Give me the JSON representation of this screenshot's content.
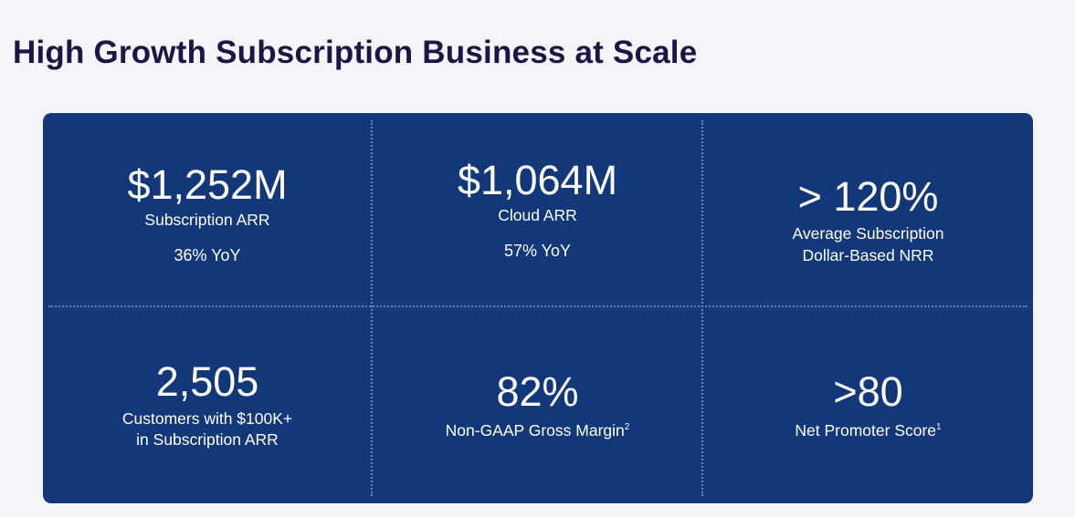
{
  "title": "High Growth Subscription Business at Scale",
  "metrics": [
    {
      "value": "$1,252M",
      "label": "Subscription ARR",
      "sub": "36% YoY"
    },
    {
      "value": "$1,064M",
      "label": "Cloud ARR",
      "sub": "57% YoY"
    },
    {
      "value": "> 120%",
      "label": "Average Subscription\n Dollar-Based NRR"
    },
    {
      "value": "2,505",
      "label": "Customers with $100K+\nin Subscription ARR"
    },
    {
      "value": "82%",
      "label": "Non-GAAP Gross Margin",
      "footnote": "2"
    },
    {
      "value": ">80",
      "label": "Net Promoter Score",
      "footnote": "1"
    }
  ]
}
